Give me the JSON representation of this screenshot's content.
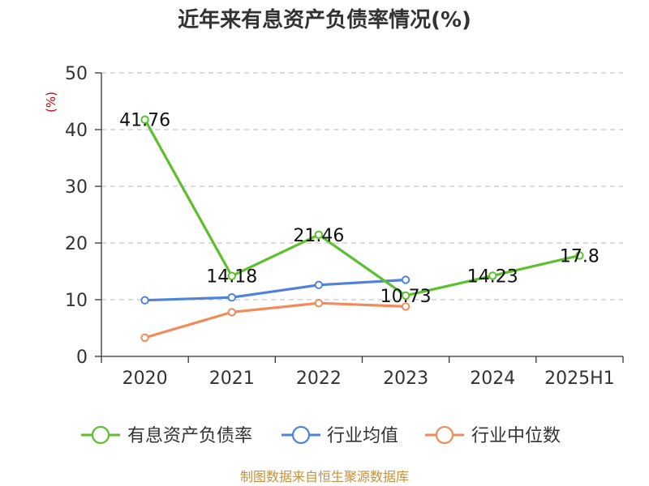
{
  "chart_data": {
    "type": "line",
    "title": "近年来有息资产负债率情况(%)",
    "ylabel": "(%)",
    "xlabel": "",
    "categories": [
      "2020",
      "2021",
      "2022",
      "2023",
      "2024",
      "2025H1"
    ],
    "ylim": [
      0,
      50
    ],
    "yticks": [
      0,
      10,
      20,
      30,
      40,
      50
    ],
    "grid": "horizontal dashed",
    "legend_position": "bottom",
    "series": [
      {
        "name": "有息资产负债率",
        "color": "#5cc02c",
        "values": [
          41.76,
          14.18,
          21.46,
          10.73,
          14.23,
          17.8
        ],
        "labels": [
          "41.76",
          "14.18",
          "21.46",
          "10.73",
          "14.23",
          "17.8"
        ]
      },
      {
        "name": "行业均值",
        "color": "#4f82dc",
        "values": [
          9.9,
          10.4,
          12.6,
          13.5,
          null,
          null
        ]
      },
      {
        "name": "行业中位数",
        "color": "#f08c5a",
        "values": [
          3.3,
          7.8,
          9.4,
          8.8,
          null,
          null
        ]
      }
    ]
  },
  "footer": {
    "source": "制图数据来自恒生聚源数据库"
  }
}
